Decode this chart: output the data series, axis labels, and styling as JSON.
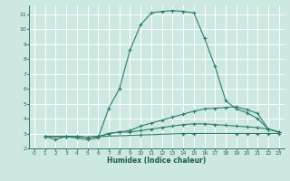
{
  "title": "",
  "xlabel": "Humidex (Indice chaleur)",
  "ylabel": "",
  "xlim": [
    -0.5,
    23.5
  ],
  "ylim": [
    2,
    11.6
  ],
  "yticks": [
    2,
    3,
    4,
    5,
    6,
    7,
    8,
    9,
    10,
    11
  ],
  "xticks": [
    0,
    1,
    2,
    3,
    4,
    5,
    6,
    7,
    8,
    9,
    10,
    11,
    12,
    13,
    14,
    15,
    16,
    17,
    18,
    19,
    20,
    21,
    22,
    23
  ],
  "background_color": "#cce8e0",
  "grid_color": "#ffffff",
  "line_color": "#2e7d6e",
  "series": [
    {
      "x": [
        1,
        2,
        3,
        4,
        5,
        6,
        7,
        8,
        9,
        10,
        11,
        12,
        13,
        14,
        15,
        16,
        17,
        18,
        19,
        20,
        21,
        22,
        23
      ],
      "y": [
        2.8,
        2.6,
        2.8,
        2.7,
        2.6,
        2.7,
        4.7,
        6.0,
        8.6,
        10.3,
        11.1,
        11.2,
        11.25,
        11.2,
        11.1,
        9.4,
        7.5,
        5.2,
        4.65,
        4.4,
        4.0,
        3.3,
        3.1
      ]
    },
    {
      "x": [
        1,
        3,
        4,
        5,
        6,
        7,
        8,
        9,
        10,
        11,
        12,
        13,
        14,
        15,
        16,
        17,
        18,
        19,
        20,
        21,
        22,
        23
      ],
      "y": [
        2.8,
        2.8,
        2.8,
        2.75,
        2.8,
        3.0,
        3.1,
        3.2,
        3.5,
        3.7,
        3.9,
        4.1,
        4.3,
        4.5,
        4.65,
        4.7,
        4.75,
        4.8,
        4.6,
        4.35,
        3.3,
        3.1
      ]
    },
    {
      "x": [
        1,
        3,
        4,
        5,
        6,
        7,
        8,
        9,
        10,
        11,
        12,
        13,
        14,
        15,
        16,
        17,
        18,
        19,
        20,
        21,
        22,
        23
      ],
      "y": [
        2.8,
        2.8,
        2.8,
        2.75,
        2.8,
        3.0,
        3.1,
        3.1,
        3.2,
        3.3,
        3.4,
        3.5,
        3.6,
        3.65,
        3.65,
        3.6,
        3.55,
        3.5,
        3.45,
        3.4,
        3.3,
        3.1
      ]
    },
    {
      "x": [
        1,
        3,
        4,
        5,
        6,
        10,
        14,
        15,
        19,
        20,
        21,
        22,
        23
      ],
      "y": [
        2.8,
        2.8,
        2.8,
        2.75,
        2.8,
        2.9,
        3.0,
        3.0,
        3.0,
        3.0,
        3.0,
        3.0,
        3.0
      ]
    }
  ]
}
